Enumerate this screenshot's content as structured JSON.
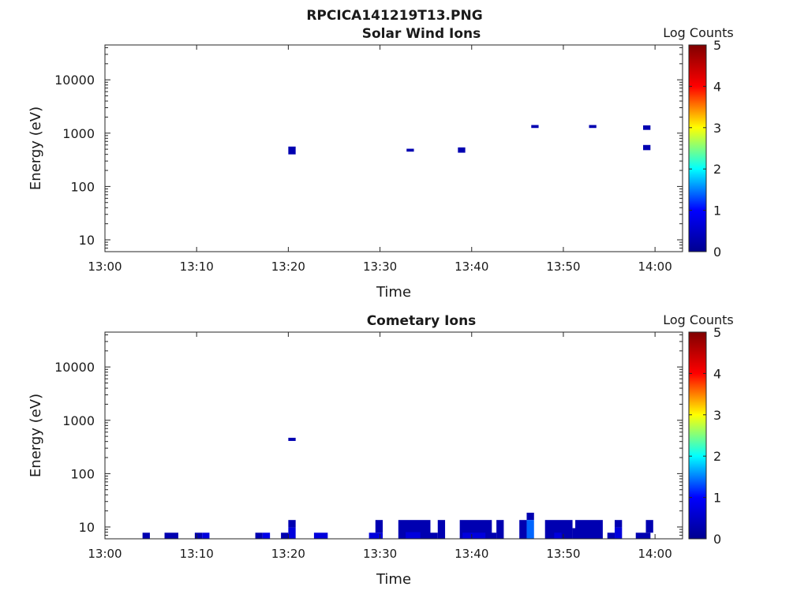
{
  "figure_title": "RPCICA141219T13.PNG",
  "colormap_stops": [
    "#00008f",
    "#0000ff",
    "#00ffff",
    "#ffff00",
    "#ff0000",
    "#800000"
  ],
  "chart_data": [
    {
      "type": "heatmap",
      "title": "Solar Wind Ions",
      "xlabel": "Time",
      "ylabel": "Energy (eV)",
      "xticks": [
        "13:00",
        "13:10",
        "13:20",
        "13:30",
        "13:40",
        "13:50",
        "14:00"
      ],
      "xlim": [
        "13:00",
        "14:03"
      ],
      "yscale": "log",
      "ylim": [
        6,
        45000
      ],
      "yticks": [
        10,
        100,
        1000,
        10000
      ],
      "ytick_labels": [
        "10",
        "100",
        "1000",
        "10000"
      ],
      "colorbar": {
        "label": "Log Counts",
        "min": 0,
        "max": 5,
        "ticks": [
          "0",
          "1",
          "2",
          "3",
          "4",
          "5"
        ]
      },
      "cells": [
        {
          "t0": "13:20:00",
          "t1": "13:20:48",
          "e0": 400,
          "e1": 560,
          "v": 0.3
        },
        {
          "t0": "13:32:54",
          "t1": "13:33:42",
          "e0": 450,
          "e1": 510,
          "v": 0.3
        },
        {
          "t0": "13:38:30",
          "t1": "13:39:18",
          "e0": 430,
          "e1": 540,
          "v": 0.3
        },
        {
          "t0": "13:46:30",
          "t1": "13:47:18",
          "e0": 1250,
          "e1": 1420,
          "v": 0.3
        },
        {
          "t0": "13:52:48",
          "t1": "13:53:36",
          "e0": 1250,
          "e1": 1420,
          "v": 0.3
        },
        {
          "t0": "13:58:42",
          "t1": "13:59:30",
          "e0": 1150,
          "e1": 1400,
          "v": 0.3
        },
        {
          "t0": "13:58:42",
          "t1": "13:59:30",
          "e0": 480,
          "e1": 600,
          "v": 0.3
        }
      ]
    },
    {
      "type": "heatmap",
      "title": "Cometary Ions",
      "xlabel": "Time",
      "ylabel": "Energy (eV)",
      "xticks": [
        "13:00",
        "13:10",
        "13:20",
        "13:30",
        "13:40",
        "13:50",
        "14:00"
      ],
      "xlim": [
        "13:00",
        "14:03"
      ],
      "yscale": "log",
      "ylim": [
        6,
        45000
      ],
      "yticks": [
        10,
        100,
        1000,
        10000
      ],
      "ytick_labels": [
        "10",
        "100",
        "1000",
        "10000"
      ],
      "colorbar": {
        "label": "Log Counts",
        "min": 0,
        "max": 5,
        "ticks": [
          "0",
          "1",
          "2",
          "3",
          "4",
          "5"
        ]
      },
      "cells": [
        {
          "t0": "13:20:00",
          "t1": "13:20:48",
          "e0": 410,
          "e1": 470,
          "v": 0.3
        },
        {
          "t0": "13:04:06",
          "t1": "13:04:54",
          "e0": 6,
          "e1": 7.8,
          "v": 0.3
        },
        {
          "t0": "13:06:30",
          "t1": "13:08:00",
          "e0": 6,
          "e1": 7.8,
          "v": 0.3
        },
        {
          "t0": "13:09:48",
          "t1": "13:10:36",
          "e0": 6,
          "e1": 7.8,
          "v": 0.3
        },
        {
          "t0": "13:10:36",
          "t1": "13:11:24",
          "e0": 6,
          "e1": 7.8,
          "v": 0.7
        },
        {
          "t0": "13:16:24",
          "t1": "13:17:12",
          "e0": 6,
          "e1": 7.8,
          "v": 0.3
        },
        {
          "t0": "13:17:12",
          "t1": "13:18:00",
          "e0": 6,
          "e1": 7.8,
          "v": 0.8
        },
        {
          "t0": "13:19:12",
          "t1": "13:20:00",
          "e0": 6,
          "e1": 7.8,
          "v": 0.3
        },
        {
          "t0": "13:20:00",
          "t1": "13:20:48",
          "e0": 9.8,
          "e1": 13.5,
          "v": 0.3
        },
        {
          "t0": "13:20:00",
          "t1": "13:20:48",
          "e0": 6,
          "e1": 9.8,
          "v": 0.7
        },
        {
          "t0": "13:22:48",
          "t1": "13:24:18",
          "e0": 6,
          "e1": 7.8,
          "v": 0.7
        },
        {
          "t0": "13:28:48",
          "t1": "13:30:18",
          "e0": 6,
          "e1": 7.8,
          "v": 0.7
        },
        {
          "t0": "13:29:30",
          "t1": "13:30:18",
          "e0": 7.8,
          "e1": 13.5,
          "v": 0.3
        },
        {
          "t0": "13:32:00",
          "t1": "13:35:30",
          "e0": 6,
          "e1": 13.5,
          "v": 0.3
        },
        {
          "t0": "13:32:48",
          "t1": "13:34:24",
          "e0": 6,
          "e1": 8,
          "v": 0.7
        },
        {
          "t0": "13:35:24",
          "t1": "13:36:18",
          "e0": 6,
          "e1": 7.8,
          "v": 0.3
        },
        {
          "t0": "13:36:18",
          "t1": "13:37:06",
          "e0": 6,
          "e1": 13.5,
          "v": 0.3
        },
        {
          "t0": "13:38:42",
          "t1": "13:42:12",
          "e0": 6,
          "e1": 13.5,
          "v": 0.3
        },
        {
          "t0": "13:39:00",
          "t1": "13:41:30",
          "e0": 6,
          "e1": 7.8,
          "v": 0.7
        },
        {
          "t0": "13:41:48",
          "t1": "13:42:42",
          "e0": 6,
          "e1": 7.8,
          "v": 0.3
        },
        {
          "t0": "13:42:42",
          "t1": "13:43:30",
          "e0": 6,
          "e1": 13.5,
          "v": 0.3
        },
        {
          "t0": "13:45:12",
          "t1": "13:46:00",
          "e0": 6,
          "e1": 13.5,
          "v": 0.3
        },
        {
          "t0": "13:46:00",
          "t1": "13:46:48",
          "e0": 13.5,
          "e1": 18.5,
          "v": 0.3
        },
        {
          "t0": "13:46:00",
          "t1": "13:46:48",
          "e0": 6,
          "e1": 13.5,
          "v": 1.4
        },
        {
          "t0": "13:48:00",
          "t1": "13:51:00",
          "e0": 6,
          "e1": 13.5,
          "v": 0.3
        },
        {
          "t0": "13:49:00",
          "t1": "13:49:48",
          "e0": 6,
          "e1": 7.8,
          "v": 0.7
        },
        {
          "t0": "13:51:00",
          "t1": "13:51:48",
          "e0": 6,
          "e1": 9.5,
          "v": 0.3
        },
        {
          "t0": "13:51:18",
          "t1": "13:54:18",
          "e0": 6,
          "e1": 13.5,
          "v": 0.3
        },
        {
          "t0": "13:54:48",
          "t1": "13:55:36",
          "e0": 6,
          "e1": 7.8,
          "v": 0.3
        },
        {
          "t0": "13:55:36",
          "t1": "13:56:24",
          "e0": 9.8,
          "e1": 13.5,
          "v": 0.3
        },
        {
          "t0": "13:55:36",
          "t1": "13:56:24",
          "e0": 6,
          "e1": 9.8,
          "v": 0.7
        },
        {
          "t0": "13:57:54",
          "t1": "13:59:30",
          "e0": 6,
          "e1": 7.8,
          "v": 0.3
        },
        {
          "t0": "13:59:00",
          "t1": "13:59:48",
          "e0": 7.8,
          "e1": 13.5,
          "v": 0.3
        }
      ]
    }
  ]
}
